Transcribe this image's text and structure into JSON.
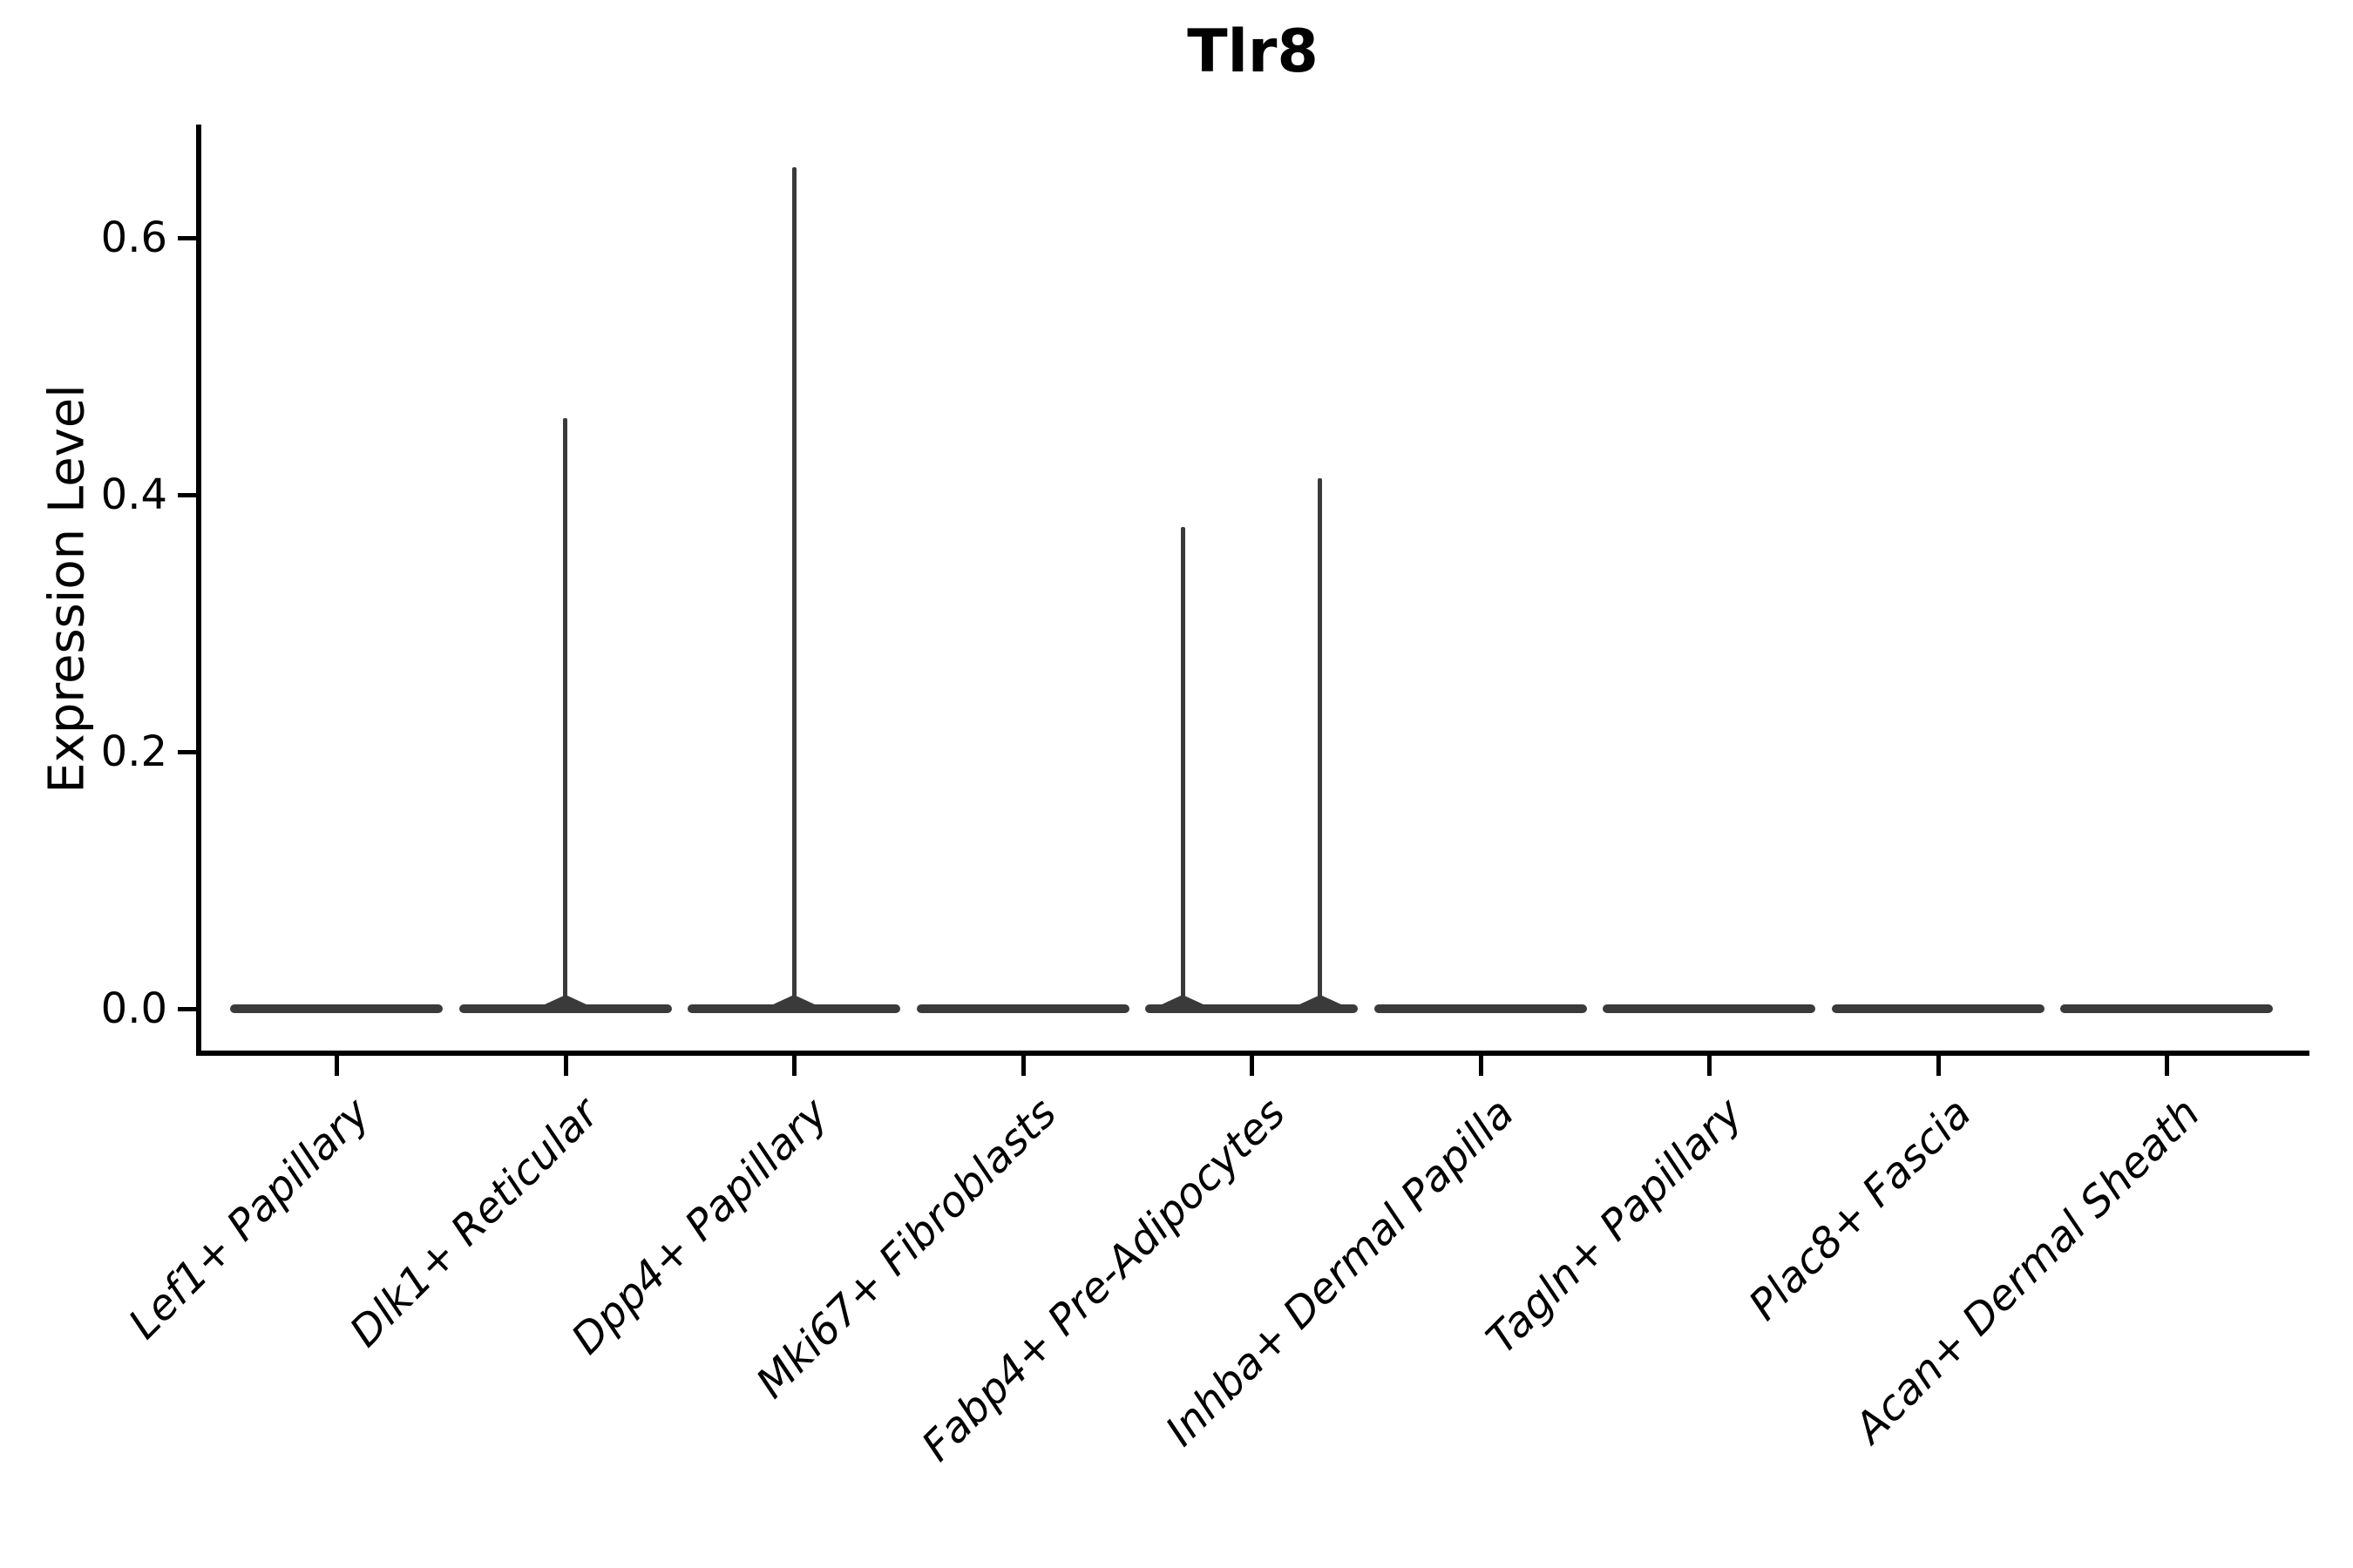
{
  "chart_data": {
    "type": "violin",
    "title": "Tlr8",
    "xlabel": "",
    "ylabel": "Expression Level",
    "y_ticks": [
      "0.0",
      "0.2",
      "0.4",
      "0.6"
    ],
    "y_tick_values": [
      0.0,
      0.2,
      0.4,
      0.6
    ],
    "ylim": [
      -0.035,
      0.688
    ],
    "grid": false,
    "legend": "none",
    "violin_color": "#3A3A3A",
    "axis_color": "#000000",
    "categories": [
      "Lef1+ Papillary",
      "Dlk1+ Reticular",
      "Dpp4+ Papillary",
      "Mki67+ Fibroblasts",
      "Fabp4+ Pre-Adipocytes",
      "Inhba+ Dermal Papilla",
      "Tagln+ Papillary",
      "Plac8+ Fascia",
      "Acan+ Dermal Sheath"
    ],
    "violins": [
      {
        "category": "Lef1+ Papillary",
        "baseline_value": 0.0,
        "spikes": []
      },
      {
        "category": "Dlk1+ Reticular",
        "baseline_value": 0.0,
        "spikes": [
          {
            "value": 0.46,
            "offset_frac": 0
          }
        ]
      },
      {
        "category": "Dpp4+ Papillary",
        "baseline_value": 0.0,
        "spikes": [
          {
            "value": 0.655,
            "offset_frac": 0
          }
        ]
      },
      {
        "category": "Mki67+ Fibroblasts",
        "baseline_value": 0.0,
        "spikes": []
      },
      {
        "category": "Fabp4+ Pre-Adipocytes",
        "baseline_value": 0.0,
        "spikes": [
          {
            "value": 0.375,
            "offset_frac": -0.645
          },
          {
            "value": 0.413,
            "offset_frac": 0.645
          }
        ]
      },
      {
        "category": "Inhba+ Dermal Papilla",
        "baseline_value": 0.0,
        "spikes": []
      },
      {
        "category": "Tagln+ Papillary",
        "baseline_value": 0.0,
        "spikes": []
      },
      {
        "category": "Plac8+ Fascia",
        "baseline_value": 0.0,
        "spikes": []
      },
      {
        "category": "Acan+ Dermal Sheath",
        "baseline_value": 0.0,
        "spikes": []
      }
    ]
  }
}
